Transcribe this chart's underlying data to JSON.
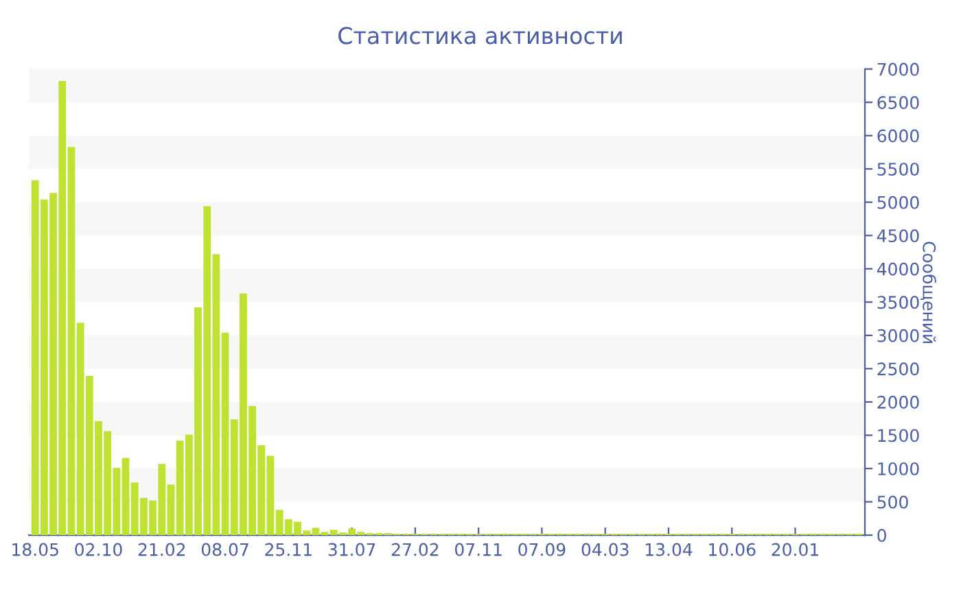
{
  "chart_data": {
    "type": "bar",
    "title": "Статистика активности",
    "ylabel": "Сообщений",
    "categories": [
      "18.05",
      null,
      null,
      null,
      null,
      null,
      null,
      "02.10",
      null,
      null,
      null,
      null,
      null,
      null,
      "21.02",
      null,
      null,
      null,
      null,
      null,
      null,
      "08.07",
      null,
      null,
      null,
      null,
      null,
      null,
      "25.11",
      null,
      null,
      null,
      null,
      null,
      null,
      "31.07",
      null,
      null,
      null,
      null,
      null,
      null,
      "27.02",
      null,
      null,
      null,
      null,
      null,
      null,
      "07.11",
      null,
      null,
      null,
      null,
      null,
      null,
      "07.09",
      null,
      null,
      null,
      null,
      null,
      null,
      "04.03",
      null,
      null,
      null,
      null,
      null,
      null,
      "13.04",
      null,
      null,
      null,
      null,
      null,
      null,
      "10.06",
      null,
      null,
      null,
      null,
      null,
      null,
      "20.01",
      null,
      null,
      null,
      null,
      null,
      null,
      null
    ],
    "values": [
      5330,
      5040,
      5140,
      6820,
      5830,
      3190,
      2390,
      1710,
      1560,
      1010,
      1160,
      790,
      560,
      520,
      1070,
      760,
      1420,
      1510,
      3420,
      4940,
      4220,
      3040,
      1740,
      3630,
      1940,
      1350,
      1190,
      380,
      240,
      200,
      70,
      110,
      50,
      80,
      40,
      100,
      50,
      30,
      30,
      30,
      20,
      20,
      20,
      20,
      20,
      20,
      20,
      20,
      20,
      20,
      20,
      20,
      20,
      20,
      20,
      20,
      20,
      20,
      20,
      20,
      20,
      20,
      20,
      20,
      20,
      20,
      20,
      20,
      20,
      20,
      20,
      20,
      20,
      20,
      20,
      20,
      20,
      20,
      20,
      20,
      20,
      20,
      20,
      20,
      20,
      20,
      20,
      20,
      20,
      20,
      20,
      20
    ],
    "color": "#bde232",
    "ylim": [
      0,
      7000
    ],
    "yticks": [
      0,
      500,
      1000,
      1500,
      2000,
      2500,
      3000,
      3500,
      4000,
      4500,
      5000,
      5500,
      6000,
      6500,
      7000
    ],
    "bands": [
      {
        "axis": "y",
        "from": 500,
        "to": 1000,
        "color": "#f7f7f7"
      },
      {
        "axis": "y",
        "from": 1500,
        "to": 2000,
        "color": "#f7f7f7"
      },
      {
        "axis": "y",
        "from": 2500,
        "to": 3000,
        "color": "#f7f7f7"
      },
      {
        "axis": "y",
        "from": 3500,
        "to": 4000,
        "color": "#f7f7f7"
      },
      {
        "axis": "y",
        "from": 4500,
        "to": 5000,
        "color": "#f7f7f7"
      },
      {
        "axis": "y",
        "from": 5500,
        "to": 6000,
        "color": "#f7f7f7"
      },
      {
        "axis": "y",
        "from": 6500,
        "to": 7000,
        "color": "#f7f7f7"
      }
    ]
  }
}
